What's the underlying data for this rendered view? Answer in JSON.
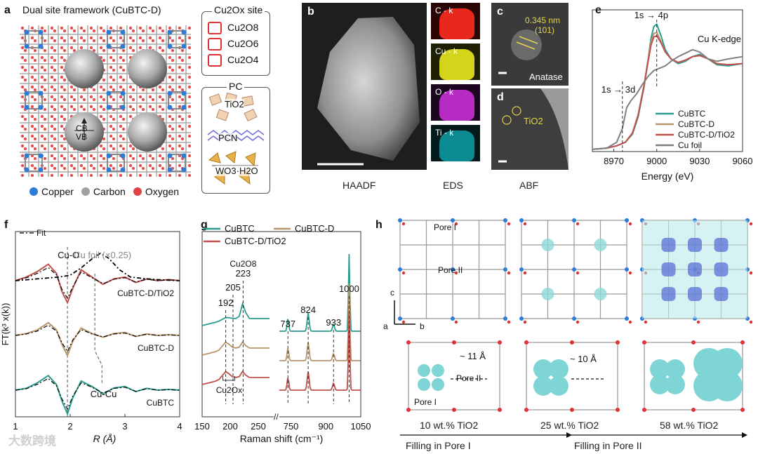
{
  "figure": {
    "panel_labels": {
      "a": "a",
      "b": "b",
      "c": "c",
      "d": "d",
      "e": "e",
      "f": "f",
      "g": "g",
      "h": "h"
    },
    "a": {
      "title": "Dual site framework (CuBTC-D)",
      "cb": "CB",
      "vb": "VB",
      "legend": [
        "Copper",
        "Carbon",
        "Oxygen"
      ],
      "cu_site_title": "Cu2Ox site",
      "cu_sites": [
        "Cu2O8",
        "Cu2O6",
        "Cu2O4"
      ],
      "pc_title": "PC",
      "pc_items": [
        "TiO2",
        "PCN",
        "WO3·H2O"
      ]
    },
    "b": {
      "caption": "HAADF"
    },
    "eds": {
      "caption": "EDS",
      "maps": [
        "C - k",
        "Cu - k",
        "O - k",
        "Ti - k"
      ],
      "colors": [
        "#e8281c",
        "#d4d41a",
        "#b52bc4",
        "#10a8b0"
      ]
    },
    "c": {
      "spacing": "0.345 nm",
      "plane": "(101)",
      "phase": "Anatase"
    },
    "d": {
      "label": "TiO2"
    },
    "abf": {
      "caption": "ABF"
    },
    "e": {
      "edge": "Cu K-edge",
      "ann1": "1s → 4p",
      "ann2": "1s → 3d"
    },
    "f": {
      "fit_label": "Fit",
      "cuo": "Cu-O",
      "cufoil": "Cu foil (×0.25)",
      "cucu": "Cu-Cu",
      "curves": [
        "CuBTC-D/TiO2",
        "CuBTC-D",
        "CuBTC"
      ]
    },
    "g": {
      "legend": [
        "CuBTC",
        "CuBTC-D",
        "CuBTC-D/TiO2"
      ],
      "peaks": [
        "192",
        "205",
        "223",
        "737",
        "824",
        "933",
        "1000"
      ],
      "cu2o8": "Cu2O8",
      "cu2ox": "Cu2Ox"
    },
    "h": {
      "pore1": "Pore I",
      "pore2": "Pore II",
      "axes": [
        "c",
        "a",
        "b"
      ],
      "d11": "~ 11 Å",
      "d10": "~ 10 Å",
      "pore2b": "Pore II",
      "pore1b": "Pore I",
      "loadings": [
        "10 wt.% TiO2",
        "25 wt.% TiO2",
        "58 wt.% TiO2"
      ],
      "filling": [
        "Filling in Pore I",
        "Filling in Pore II"
      ]
    },
    "watermark": "大数跨境"
  },
  "chart_data": [
    {
      "type": "line",
      "title": "Cu K-edge",
      "xlabel": "Energy (eV)",
      "ylabel": "",
      "xlim": [
        8955,
        9060
      ],
      "xticks": [
        8970,
        9000,
        9030,
        9060
      ],
      "series": [
        {
          "name": "CuBTC",
          "color": "#2a9d8f",
          "x": [
            8955,
            8965,
            8972,
            8978,
            8983,
            8987,
            8991,
            8994,
            8996,
            8998,
            9000,
            9003,
            9006,
            9010,
            9015,
            9020,
            9025,
            9030,
            9036,
            9042,
            9050,
            9060
          ],
          "values": [
            0.02,
            0.03,
            0.05,
            0.08,
            0.15,
            0.3,
            0.55,
            0.8,
            0.98,
            1.08,
            1.1,
            1.0,
            0.88,
            0.8,
            0.76,
            0.78,
            0.82,
            0.84,
            0.8,
            0.75,
            0.74,
            0.76
          ]
        },
        {
          "name": "CuBTC-D",
          "color": "#b8946a",
          "x": [
            8955,
            8965,
            8972,
            8978,
            8983,
            8987,
            8991,
            8994,
            8996,
            8998,
            9000,
            9003,
            9006,
            9010,
            9015,
            9020,
            9025,
            9030,
            9036,
            9042,
            9050,
            9060
          ],
          "values": [
            0.02,
            0.03,
            0.05,
            0.08,
            0.16,
            0.32,
            0.57,
            0.8,
            0.95,
            1.02,
            1.03,
            0.95,
            0.86,
            0.8,
            0.77,
            0.79,
            0.82,
            0.83,
            0.8,
            0.76,
            0.75,
            0.76
          ]
        },
        {
          "name": "CuBTC-D/TiO2",
          "color": "#c0504d",
          "x": [
            8955,
            8965,
            8972,
            8978,
            8983,
            8987,
            8991,
            8994,
            8996,
            8998,
            9000,
            9003,
            9006,
            9010,
            9015,
            9020,
            9025,
            9030,
            9036,
            9042,
            9050,
            9060
          ],
          "values": [
            0.02,
            0.03,
            0.05,
            0.08,
            0.16,
            0.31,
            0.56,
            0.78,
            0.92,
            0.99,
            1.0,
            0.94,
            0.86,
            0.8,
            0.77,
            0.79,
            0.82,
            0.83,
            0.8,
            0.76,
            0.75,
            0.76
          ]
        },
        {
          "name": "Cu foil",
          "color": "#808080",
          "x": [
            8955,
            8965,
            8972,
            8976,
            8979,
            8982,
            8986,
            8990,
            8994,
            8998,
            9002,
            9006,
            9010,
            9015,
            9020,
            9025,
            9030,
            9036,
            9042,
            9050,
            9060
          ],
          "values": [
            0.02,
            0.03,
            0.08,
            0.2,
            0.38,
            0.44,
            0.5,
            0.58,
            0.65,
            0.7,
            0.72,
            0.74,
            0.78,
            0.82,
            0.85,
            0.88,
            0.86,
            0.8,
            0.78,
            0.8,
            0.82
          ]
        }
      ]
    },
    {
      "type": "line",
      "title": "",
      "xlabel": "R (Å)",
      "ylabel": "FT(k³ x(k))",
      "xlim": [
        1,
        4
      ],
      "xticks": [
        1,
        2,
        3,
        4
      ],
      "series": [
        {
          "name": "CuBTC-D/TiO2",
          "color": "#c0504d",
          "offset": 2,
          "x": [
            1.0,
            1.2,
            1.4,
            1.6,
            1.75,
            1.85,
            1.95,
            2.05,
            2.2,
            2.4,
            2.6,
            2.8,
            3.0,
            3.2,
            3.4,
            3.6,
            3.8,
            4.0
          ],
          "values": [
            0.0,
            0.1,
            0.25,
            0.45,
            0.2,
            -0.3,
            -0.6,
            -0.2,
            0.3,
            0.1,
            -0.1,
            0.05,
            0.1,
            -0.05,
            0.05,
            0.0,
            0.03,
            0.0
          ]
        },
        {
          "name": "Cu foil",
          "color": "#000000",
          "offset": 2,
          "dash": true,
          "x": [
            1.0,
            1.4,
            1.8,
            2.0,
            2.2,
            2.4,
            2.55,
            2.7,
            2.9,
            3.1,
            3.4,
            3.7,
            4.0
          ],
          "values": [
            0.0,
            0.05,
            0.1,
            0.15,
            0.35,
            0.6,
            0.75,
            0.62,
            0.3,
            0.1,
            0.05,
            0.02,
            0.0
          ]
        },
        {
          "name": "CuBTC-D",
          "color": "#b8946a",
          "offset": 1,
          "x": [
            1.0,
            1.2,
            1.4,
            1.6,
            1.75,
            1.85,
            1.95,
            2.05,
            2.2,
            2.4,
            2.6,
            2.8,
            3.0,
            3.2,
            3.4,
            3.6,
            3.8,
            4.0
          ],
          "values": [
            0.0,
            0.05,
            0.15,
            0.35,
            0.15,
            -0.25,
            -0.55,
            -0.15,
            0.2,
            0.05,
            -0.05,
            0.05,
            0.08,
            -0.03,
            0.04,
            0.0,
            0.02,
            0.0
          ]
        },
        {
          "name": "CuBTC",
          "color": "#2a9d8f",
          "offset": 0,
          "x": [
            1.0,
            1.2,
            1.4,
            1.6,
            1.75,
            1.85,
            1.95,
            2.05,
            2.2,
            2.4,
            2.6,
            2.8,
            3.0,
            3.2,
            3.4,
            3.6,
            3.8,
            4.0
          ],
          "values": [
            0.0,
            0.05,
            0.2,
            0.4,
            0.15,
            -0.3,
            -0.65,
            -0.2,
            0.25,
            0.1,
            -0.1,
            0.06,
            0.1,
            -0.04,
            0.05,
            0.0,
            0.02,
            0.0
          ]
        }
      ]
    },
    {
      "type": "line",
      "title": "",
      "xlabel": "Raman shift (cm-1)",
      "ylabel": "",
      "xticks": [
        150,
        200,
        250,
        750,
        900,
        1050
      ],
      "series": [
        {
          "name": "CuBTC",
          "color": "#2a9d8f"
        },
        {
          "name": "CuBTC-D",
          "color": "#b8946a"
        },
        {
          "name": "CuBTC-D/TiO2",
          "color": "#c0504d"
        }
      ]
    }
  ]
}
